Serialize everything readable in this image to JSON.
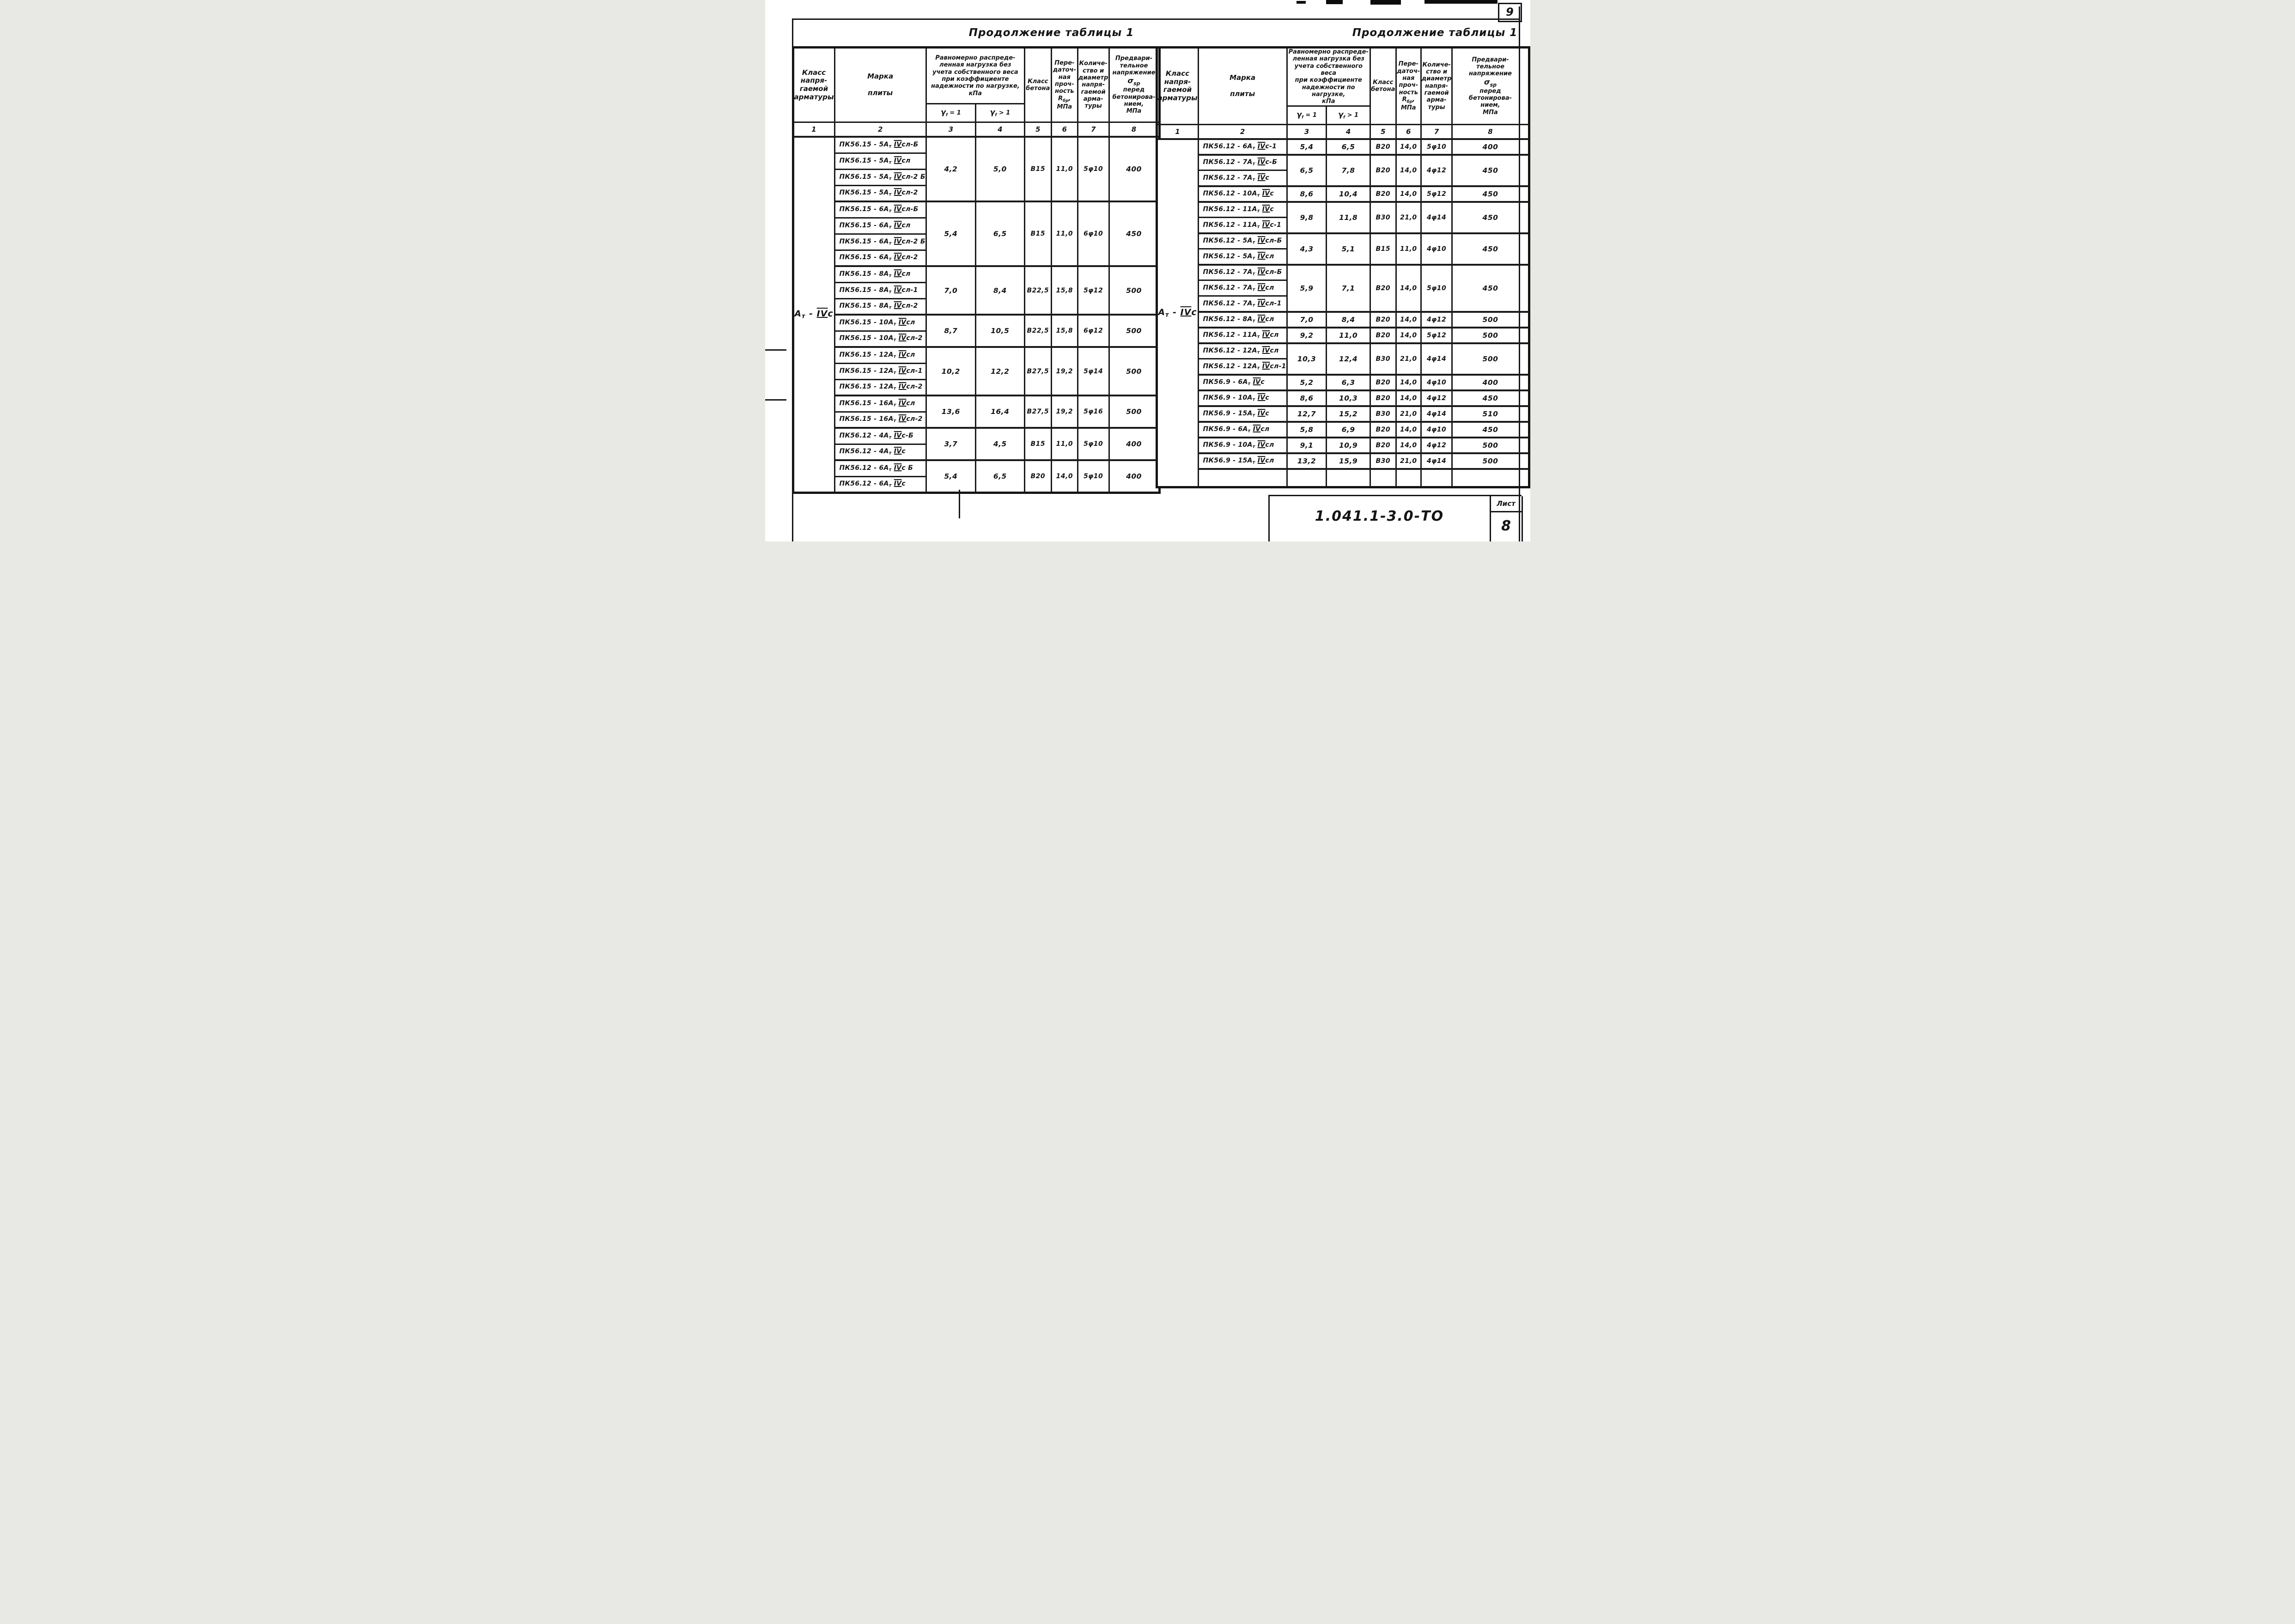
{
  "page": {
    "page_number": "9",
    "doc_number": "1.041.1-3.0-ТО",
    "sheet_label": "Лист",
    "sheet_number": "8"
  },
  "header": {
    "class_col": "Класс\nнапря-\nгаемой\nарматуры",
    "mark_col": "Марка\n\nплиты",
    "load_col": "Равномерно распреде-\nленная нагрузка без\nучета собственного веса\nпри коэффициенте\nнадежности по нагрузке,\nкПа",
    "gamma_eq": {
      "sym": "γ",
      "sub": "f",
      "rel": " = 1"
    },
    "gamma_gt": {
      "sym": "γ",
      "sub": "f",
      "rel": " > 1"
    },
    "concrete_col": "Класс\nбетона",
    "strength_col": {
      "top": "Пере-\nдаточ-\nная\nпроч-\nность",
      "r": "R",
      "rsub": "бр",
      "unit": ",\nМПа"
    },
    "reinforcement_col": "Количе-\nство и\nдиаметр\nнапря-\nгаемой\nарма-\nтуры",
    "prestress_col": {
      "top": "Предвари-\nтельное\nнапряжение",
      "sigma": "σ",
      "sigma_sub": "sp",
      "bottom": "перед\nбетонирова-\nнием,\nМПа"
    }
  },
  "left_table": {
    "title": "Продолжение таблицы 1",
    "class_label": "Ат - IVс",
    "column_numbers": [
      "1",
      "2",
      "3",
      "4",
      "5",
      "6",
      "7",
      "8"
    ],
    "trailing_empty_row": false,
    "groups": [
      {
        "marks": [
          "ПК56.15 - 5Ат IVсл-Б",
          "ПК56.15 - 5Ат IVсл",
          "ПК56.15 - 5Ат IVсл-2 Б",
          "ПК56.15 - 5Ат IVсл-2"
        ],
        "load_g1": "4,2",
        "load_gf": "5,0",
        "concrete": "В15",
        "strength": "11,0",
        "reinforcement": "5φ10",
        "prestress": "400"
      },
      {
        "marks": [
          "ПК56.15 - 6Ат IVсл-Б",
          "ПК56.15 - 6Ат IVсл",
          "ПК56.15 - 6Ат IVсл-2 Б",
          "ПК56.15 - 6Ат IVсл-2"
        ],
        "load_g1": "5,4",
        "load_gf": "6,5",
        "concrete": "В15",
        "strength": "11,0",
        "reinforcement": "6φ10",
        "prestress": "450"
      },
      {
        "marks": [
          "ПК56.15 - 8Ат IVсл",
          "ПК56.15 - 8Ат IVсл-1",
          "ПК56.15 - 8Ат IVсл-2"
        ],
        "load_g1": "7,0",
        "load_gf": "8,4",
        "concrete": "В22,5",
        "strength": "15,8",
        "reinforcement": "5φ12",
        "prestress": "500"
      },
      {
        "marks": [
          "ПК56.15 - 10Ат IVсл",
          "ПК56.15 - 10Ат IVсл-2"
        ],
        "load_g1": "8,7",
        "load_gf": "10,5",
        "concrete": "В22,5",
        "strength": "15,8",
        "reinforcement": "6φ12",
        "prestress": "500"
      },
      {
        "marks": [
          "ПК56.15 - 12Ат IVсл",
          "ПК56.15 - 12Ат IVсл-1",
          "ПК56.15 - 12Ат IVсл-2"
        ],
        "load_g1": "10,2",
        "load_gf": "12,2",
        "concrete": "В27,5",
        "strength": "19,2",
        "reinforcement": "5φ14",
        "prestress": "500"
      },
      {
        "marks": [
          "ПК56.15 - 16Ат IVсл",
          "ПК56.15 - 16Ат IVсл-2"
        ],
        "load_g1": "13,6",
        "load_gf": "16,4",
        "concrete": "В27,5",
        "strength": "19,2",
        "reinforcement": "5φ16",
        "prestress": "500"
      },
      {
        "marks": [
          "ПК56.12 - 4Ат IVс-Б",
          "ПК56.12 - 4Ат IVс"
        ],
        "load_g1": "3,7",
        "load_gf": "4,5",
        "concrete": "В15",
        "strength": "11,0",
        "reinforcement": "5φ10",
        "prestress": "400"
      },
      {
        "marks": [
          "ПК56.12 - 6Ат IVс Б",
          "ПК56.12 - 6Ат IVс"
        ],
        "load_g1": "5,4",
        "load_gf": "6,5",
        "concrete": "В20",
        "strength": "14,0",
        "reinforcement": "5φ10",
        "prestress": "400"
      }
    ]
  },
  "right_table": {
    "title": "Продолжение таблицы 1",
    "class_label": "Ат - IVс",
    "column_numbers": [
      "1",
      "2",
      "3",
      "4",
      "5",
      "6",
      "7",
      "8"
    ],
    "trailing_empty_row": true,
    "groups": [
      {
        "marks": [
          "ПК56.12 - 6Ат IVс-1"
        ],
        "load_g1": "5,4",
        "load_gf": "6,5",
        "concrete": "В20",
        "strength": "14,0",
        "reinforcement": "5φ10",
        "prestress": "400"
      },
      {
        "marks": [
          "ПК56.12 - 7Ат IVс-Б",
          "ПК56.12 - 7Ат IVс"
        ],
        "load_g1": "6,5",
        "load_gf": "7,8",
        "concrete": "В20",
        "strength": "14,0",
        "reinforcement": "4φ12",
        "prestress": "450"
      },
      {
        "marks": [
          "ПК56.12 - 10Ат IVс"
        ],
        "load_g1": "8,6",
        "load_gf": "10,4",
        "concrete": "В20",
        "strength": "14,0",
        "reinforcement": "5φ12",
        "prestress": "450"
      },
      {
        "marks": [
          "ПК56.12 - 11Ат IVс",
          "ПК56.12 - 11Ат IVс-1"
        ],
        "load_g1": "9,8",
        "load_gf": "11,8",
        "concrete": "В30",
        "strength": "21,0",
        "reinforcement": "4φ14",
        "prestress": "450"
      },
      {
        "marks": [
          "ПК56.12 - 5Ат IVсл-Б",
          "ПК56.12 - 5Ат IVсл"
        ],
        "load_g1": "4,3",
        "load_gf": "5,1",
        "concrete": "В15",
        "strength": "11,0",
        "reinforcement": "4φ10",
        "prestress": "450"
      },
      {
        "marks": [
          "ПК56.12 - 7Ат IVсл-Б",
          "ПК56.12 - 7Ат IVсл",
          "ПК56.12 - 7Ат IVсл-1"
        ],
        "load_g1": "5,9",
        "load_gf": "7,1",
        "concrete": "В20",
        "strength": "14,0",
        "reinforcement": "5φ10",
        "prestress": "450"
      },
      {
        "marks": [
          "ПК56.12 - 8Ат IVсл"
        ],
        "load_g1": "7,0",
        "load_gf": "8,4",
        "concrete": "В20",
        "strength": "14,0",
        "reinforcement": "4φ12",
        "prestress": "500"
      },
      {
        "marks": [
          "ПК56.12 - 11Ат IVсл"
        ],
        "load_g1": "9,2",
        "load_gf": "11,0",
        "concrete": "В20",
        "strength": "14,0",
        "reinforcement": "5φ12",
        "prestress": "500"
      },
      {
        "marks": [
          "ПК56.12 - 12Ат IVсл",
          "ПК56.12 - 12Ат IVсл-1"
        ],
        "load_g1": "10,3",
        "load_gf": "12,4",
        "concrete": "В30",
        "strength": "21,0",
        "reinforcement": "4φ14",
        "prestress": "500"
      },
      {
        "marks": [
          "ПК56.9 - 6Ат IVс"
        ],
        "load_g1": "5,2",
        "load_gf": "6,3",
        "concrete": "В20",
        "strength": "14,0",
        "reinforcement": "4φ10",
        "prestress": "400"
      },
      {
        "marks": [
          "ПК56.9 - 10Ат IVс"
        ],
        "load_g1": "8,6",
        "load_gf": "10,3",
        "concrete": "В20",
        "strength": "14,0",
        "reinforcement": "4φ12",
        "prestress": "450"
      },
      {
        "marks": [
          "ПК56.9 - 15Ат IVс"
        ],
        "load_g1": "12,7",
        "load_gf": "15,2",
        "concrete": "В30",
        "strength": "21,0",
        "reinforcement": "4φ14",
        "prestress": "510"
      },
      {
        "marks": [
          "ПК56.9 - 6Ат IVсл"
        ],
        "load_g1": "5,8",
        "load_gf": "6,9",
        "concrete": "В20",
        "strength": "14,0",
        "reinforcement": "4φ10",
        "prestress": "450"
      },
      {
        "marks": [
          "ПК56.9 - 10Ат IVсл"
        ],
        "load_g1": "9,1",
        "load_gf": "10,9",
        "concrete": "В20",
        "strength": "14,0",
        "reinforcement": "4φ12",
        "prestress": "500"
      },
      {
        "marks": [
          "ПК56.9 - 15Ат IVсл"
        ],
        "load_g1": "13,2",
        "load_gf": "15,9",
        "concrete": "В30",
        "strength": "21,0",
        "reinforcement": "4φ14",
        "prestress": "500"
      }
    ]
  }
}
